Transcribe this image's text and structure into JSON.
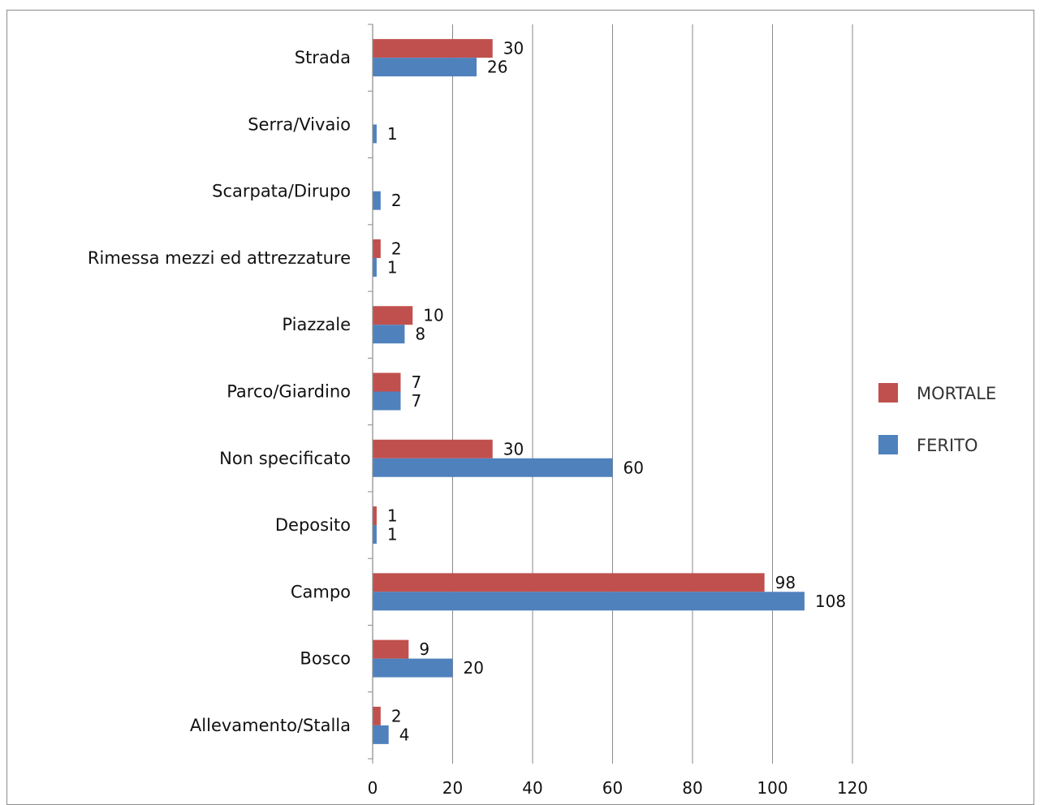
{
  "chart_data": {
    "type": "bar",
    "orientation": "horizontal",
    "categories": [
      "Strada",
      "Serra/Vivaio",
      "Scarpata/Dirupo",
      "Rimessa mezzi ed attrezzature",
      "Piazzale",
      "Parco/Giardino",
      "Non specificato",
      "Deposito",
      "Campo",
      "Bosco",
      "Allevamento/Stalla"
    ],
    "series": [
      {
        "name": "MORTALE",
        "color": "#c0504d",
        "values": [
          30,
          null,
          null,
          2,
          10,
          7,
          30,
          1,
          98,
          9,
          2
        ]
      },
      {
        "name": "FERITO",
        "color": "#4f81bd",
        "values": [
          26,
          1,
          2,
          1,
          8,
          7,
          60,
          1,
          108,
          20,
          4
        ]
      }
    ],
    "xlim": [
      0,
      120
    ],
    "xticks": [
      0,
      20,
      40,
      60,
      80,
      100,
      120
    ],
    "grid": true,
    "legend_position": "right",
    "title": "",
    "xlabel": "",
    "ylabel": ""
  }
}
